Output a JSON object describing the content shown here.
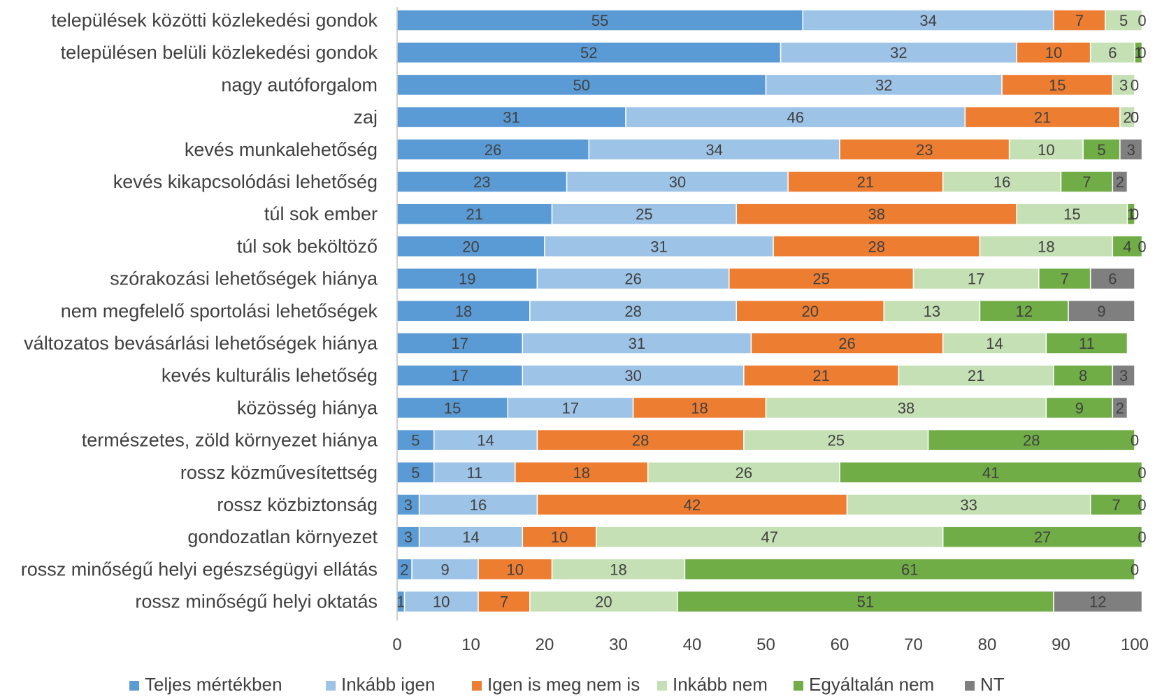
{
  "chart_data": {
    "type": "bar",
    "orientation": "horizontal",
    "stacked": true,
    "title": "",
    "xlabel": "",
    "ylabel": "",
    "xlim": [
      0,
      100
    ],
    "x_ticks": [
      0,
      10,
      20,
      30,
      40,
      50,
      60,
      70,
      80,
      90,
      100
    ],
    "grid": false,
    "legend_position": "bottom",
    "categories": [
      "települések közötti közlekedési gondok",
      "településen belüli közlekedési gondok",
      "nagy autóforgalom",
      "zaj",
      "kevés munkalehetőség",
      "kevés kikapcsolódási lehetőség",
      "túl sok ember",
      "túl sok beköltöző",
      "szórakozási lehetőségek hiánya",
      "nem megfelelő sportolási lehetőségek",
      "változatos bevásárlási lehetőségek hiánya",
      "kevés kulturális lehetőség",
      "közösség hiánya",
      "természetes, zöld környezet hiánya",
      "rossz közművesítettség",
      "rossz közbiztonság",
      "gondozatlan környezet",
      "rossz minőségű helyi egészségügyi ellátás",
      "rossz minőségű helyi oktatás"
    ],
    "series": [
      {
        "name": "Teljes mértékben",
        "color": "#5b9bd5",
        "values": [
          55,
          52,
          50,
          31,
          26,
          23,
          21,
          20,
          19,
          18,
          17,
          17,
          15,
          5,
          5,
          3,
          3,
          2,
          1
        ]
      },
      {
        "name": "Inkább igen",
        "color": "#9dc3e6",
        "values": [
          34,
          32,
          32,
          46,
          34,
          30,
          25,
          31,
          26,
          28,
          31,
          30,
          17,
          14,
          11,
          16,
          14,
          9,
          10
        ]
      },
      {
        "name": "Igen is meg nem is",
        "color": "#ed7d31",
        "values": [
          7,
          10,
          15,
          21,
          23,
          21,
          38,
          28,
          25,
          20,
          26,
          21,
          18,
          28,
          18,
          42,
          10,
          10,
          7
        ]
      },
      {
        "name": "Inkább nem",
        "color": "#c5e0b4",
        "values": [
          5,
          6,
          3,
          2,
          10,
          16,
          15,
          18,
          17,
          13,
          14,
          21,
          38,
          25,
          26,
          33,
          47,
          18,
          20
        ]
      },
      {
        "name": "Egyáltalán nem",
        "color": "#70ad47",
        "values": [
          0,
          1,
          0,
          0,
          5,
          7,
          1,
          4,
          7,
          12,
          11,
          8,
          9,
          28,
          41,
          7,
          27,
          61,
          51
        ]
      },
      {
        "name": "NT",
        "color": "#7f7f7f",
        "values": [
          0,
          0,
          0,
          0,
          3,
          2,
          0,
          0,
          6,
          9,
          0,
          3,
          2,
          0,
          0,
          0,
          0,
          0,
          12
        ]
      }
    ],
    "data_labels": [
      [
        "55",
        "34",
        "7",
        "5",
        "0",
        ""
      ],
      [
        "52",
        "32",
        "10",
        "6",
        "1",
        "0"
      ],
      [
        "50",
        "32",
        "15",
        "3",
        "0",
        ""
      ],
      [
        "31",
        "46",
        "21",
        "2",
        "0",
        "0"
      ],
      [
        "26",
        "34",
        "23",
        "10",
        "5",
        "3"
      ],
      [
        "23",
        "30",
        "21",
        "16",
        "7",
        "2"
      ],
      [
        "21",
        "25",
        "38",
        "15",
        "1",
        "0"
      ],
      [
        "20",
        "31",
        "28",
        "18",
        "4",
        "0"
      ],
      [
        "19",
        "26",
        "25",
        "17",
        "7",
        "6"
      ],
      [
        "18",
        "28",
        "20",
        "13",
        "12",
        "9"
      ],
      [
        "17",
        "31",
        "26",
        "14",
        "11",
        ""
      ],
      [
        "17",
        "30",
        "21",
        "21",
        "8",
        "3"
      ],
      [
        "15",
        "17",
        "18",
        "38",
        "9",
        "2"
      ],
      [
        "5",
        "14",
        "28",
        "25",
        "28",
        "0"
      ],
      [
        "5",
        "11",
        "18",
        "26",
        "41",
        "0"
      ],
      [
        "3",
        "16",
        "42",
        "33",
        "7",
        "0"
      ],
      [
        "3",
        "14",
        "10",
        "47",
        "27",
        "0"
      ],
      [
        "2",
        "9",
        "10",
        "18",
        "61",
        "0"
      ],
      [
        "1",
        "10",
        "7",
        "20",
        "51",
        "12"
      ]
    ]
  }
}
